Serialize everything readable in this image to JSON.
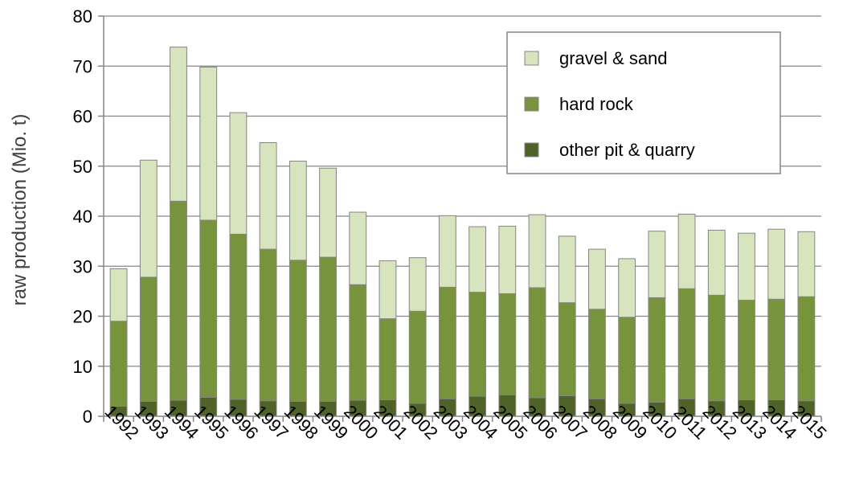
{
  "chart_data": {
    "type": "bar",
    "stacked": true,
    "title": "",
    "xlabel": "",
    "ylabel": "raw production (Mio. t)",
    "ylim": [
      0,
      80
    ],
    "yticks": [
      0,
      10,
      20,
      30,
      40,
      50,
      60,
      70,
      80
    ],
    "grid": true,
    "legend_position": "top-right",
    "categories": [
      "1992",
      "1993",
      "1994",
      "1995",
      "1996",
      "1997",
      "1998",
      "1999",
      "2000",
      "2001",
      "2002",
      "2003",
      "2004",
      "2005",
      "2006",
      "2007",
      "2008",
      "2009",
      "2010",
      "2011",
      "2012",
      "2013",
      "2014",
      "2015"
    ],
    "series": [
      {
        "name": "other pit & quarry",
        "color": "#4F6228",
        "values": [
          2,
          3,
          3.2,
          3.8,
          3.4,
          3.1,
          3,
          3,
          3.2,
          3.3,
          2.6,
          3.5,
          4,
          4.3,
          3.7,
          4.1,
          3.5,
          2.6,
          2.8,
          3.5,
          3.1,
          3.3,
          3.3,
          3.1
        ]
      },
      {
        "name": "hard rock",
        "color": "#77933C",
        "values": [
          17,
          24.8,
          39.8,
          35.4,
          33,
          30.3,
          28.2,
          28.8,
          23.1,
          16.2,
          18.4,
          22.3,
          20.8,
          20.2,
          22,
          18.6,
          17.9,
          17.2,
          20.9,
          22,
          21.1,
          19.9,
          20.1,
          20.8
        ]
      },
      {
        "name": "gravel & sand",
        "color": "#D7E4BD",
        "values": [
          10.5,
          23.4,
          30.8,
          30.6,
          24.3,
          21.3,
          19.8,
          17.8,
          14.5,
          11.6,
          10.7,
          14.3,
          13.1,
          13.5,
          14.6,
          13.3,
          12,
          11.7,
          13.3,
          14.9,
          13,
          13.4,
          14,
          13
        ]
      }
    ]
  }
}
